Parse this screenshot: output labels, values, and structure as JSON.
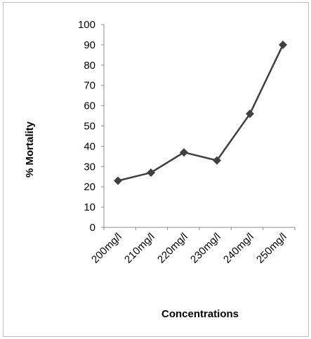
{
  "chart_data": {
    "type": "line",
    "title": "",
    "xlabel": "Concentrations",
    "ylabel": "% Mortality",
    "categories": [
      "200mg/l",
      "210mg/l",
      "220mg/l",
      "230mg/l",
      "240mg/l",
      "250mg/l"
    ],
    "series": [
      {
        "values": [
          23,
          27,
          37,
          33,
          56,
          90
        ],
        "color": "#404040",
        "marker": "diamond"
      }
    ],
    "ylim": [
      0,
      100
    ],
    "yticks": [
      0,
      10,
      20,
      30,
      40,
      50,
      60,
      70,
      80,
      90,
      100
    ],
    "ytick_labels": [
      "0",
      "10",
      "20",
      "30",
      "40",
      "50",
      "60",
      "70",
      "80",
      "90",
      "100"
    ],
    "grid": false,
    "legend": "none"
  }
}
